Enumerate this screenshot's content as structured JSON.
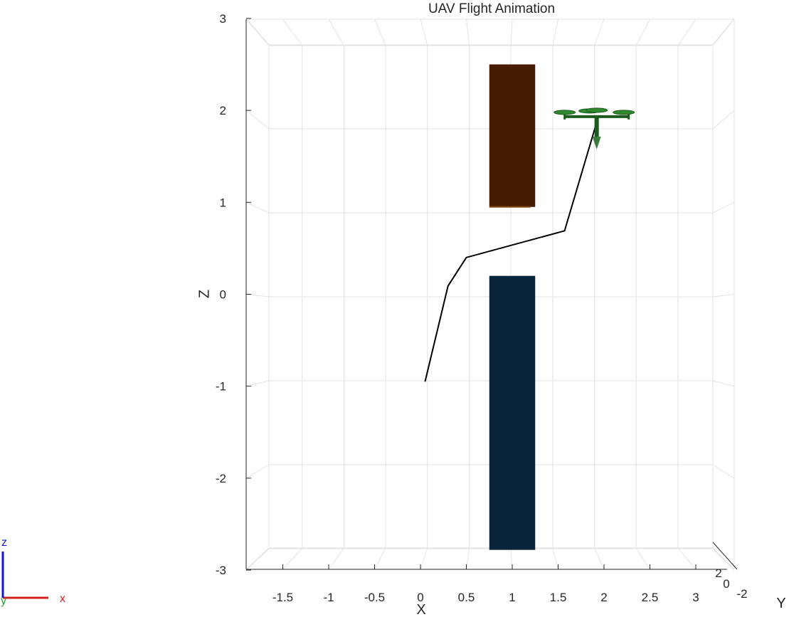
{
  "chart_data": {
    "type": "line",
    "title": "UAV Flight Animation",
    "xlabel": "X",
    "ylabel": "Y",
    "zlabel": "Z",
    "xlim": [
      -1.9,
      3.3
    ],
    "zlim": [
      -3,
      3
    ],
    "x_ticks": [
      "-1.5",
      "-1",
      "-0.5",
      "0",
      "0.5",
      "1",
      "1.5",
      "2",
      "2.5",
      "3"
    ],
    "z_ticks": [
      "-3",
      "-2",
      "-1",
      "0",
      "1",
      "2",
      "3"
    ],
    "y_ticks": [
      "2",
      "0",
      "-2"
    ],
    "grid": true,
    "series": [
      {
        "name": "",
        "x": [
          0.05,
          0.3,
          0.5,
          1.57,
          1.92
        ],
        "z": [
          -0.95,
          0.09,
          0.4,
          0.69,
          1.87
        ]
      }
    ],
    "obstacles": [
      {
        "x": [
          0.75,
          1.25
        ],
        "z": [
          0.95,
          2.5
        ],
        "color": "#451c00"
      },
      {
        "x": [
          0.75,
          1.25
        ],
        "z": [
          -2.78,
          0.2
        ],
        "color": "#092338"
      }
    ],
    "uav": {
      "x": 1.92,
      "z": 1.87,
      "color": "#1e5a1e"
    }
  },
  "triad": {
    "x": "x",
    "y": "y",
    "z": "z"
  }
}
